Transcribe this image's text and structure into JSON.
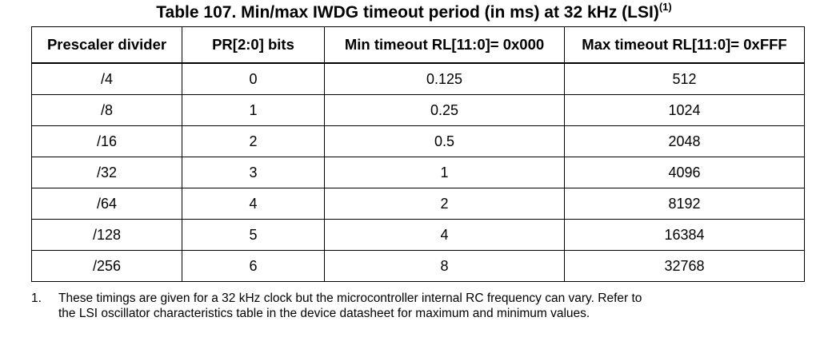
{
  "caption": {
    "text": "Table 107. Min/max IWDG timeout period (in ms) at 32 kHz (LSI)",
    "note_ref": "(1)"
  },
  "table": {
    "headers": [
      "Prescaler divider",
      "PR[2:0] bits",
      "Min timeout RL[11:0]= 0x000",
      "Max timeout RL[11:0]= 0xFFF"
    ],
    "rows": [
      [
        "/4",
        "0",
        "0.125",
        "512"
      ],
      [
        "/8",
        "1",
        "0.25",
        "1024"
      ],
      [
        "/16",
        "2",
        "0.5",
        "2048"
      ],
      [
        "/32",
        "3",
        "1",
        "4096"
      ],
      [
        "/64",
        "4",
        "2",
        "8192"
      ],
      [
        "/128",
        "5",
        "4",
        "16384"
      ],
      [
        "/256",
        "6",
        "8",
        "32768"
      ]
    ]
  },
  "footnote": {
    "number": "1.",
    "line1": "These timings are given for a 32 kHz clock but the microcontroller internal RC frequency can vary. Refer to",
    "line2": "the LSI oscillator characteristics table in the device datasheet for maximum and minimum values."
  }
}
